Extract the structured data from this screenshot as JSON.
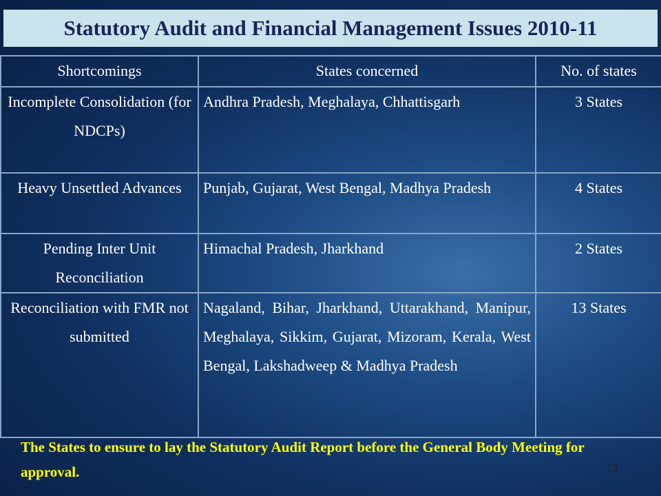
{
  "header": {
    "title": "Statutory Audit and Financial Management Issues 2010-11"
  },
  "table": {
    "columns": [
      "Shortcomings",
      "States  concerned",
      "No. of states"
    ],
    "rows": [
      [
        "Incomplete Consolidation (for NDCPs)",
        "Andhra Pradesh, Meghalaya, Chhattisgarh",
        "3 States"
      ],
      [
        "Heavy Unsettled Advances",
        "Punjab, Gujarat, West Bengal, Madhya Pradesh",
        "4 States"
      ],
      [
        "Pending Inter Unit Reconciliation",
        "Himachal Pradesh, Jharkhand",
        "2 States"
      ],
      [
        "Reconciliation with FMR not submitted",
        "Nagaland, Bihar, Jharkhand, Uttarakhand, Manipur, Meghalaya, Sikkim, Gujarat, Mizoram, Kerala, West Bengal, Lakshadweep & Madhya Pradesh",
        "13 States"
      ]
    ]
  },
  "footer": {
    "note": "The States to ensure to lay the Statutory Audit Report before the General Body Meeting for approval.",
    "page_number": "13"
  }
}
